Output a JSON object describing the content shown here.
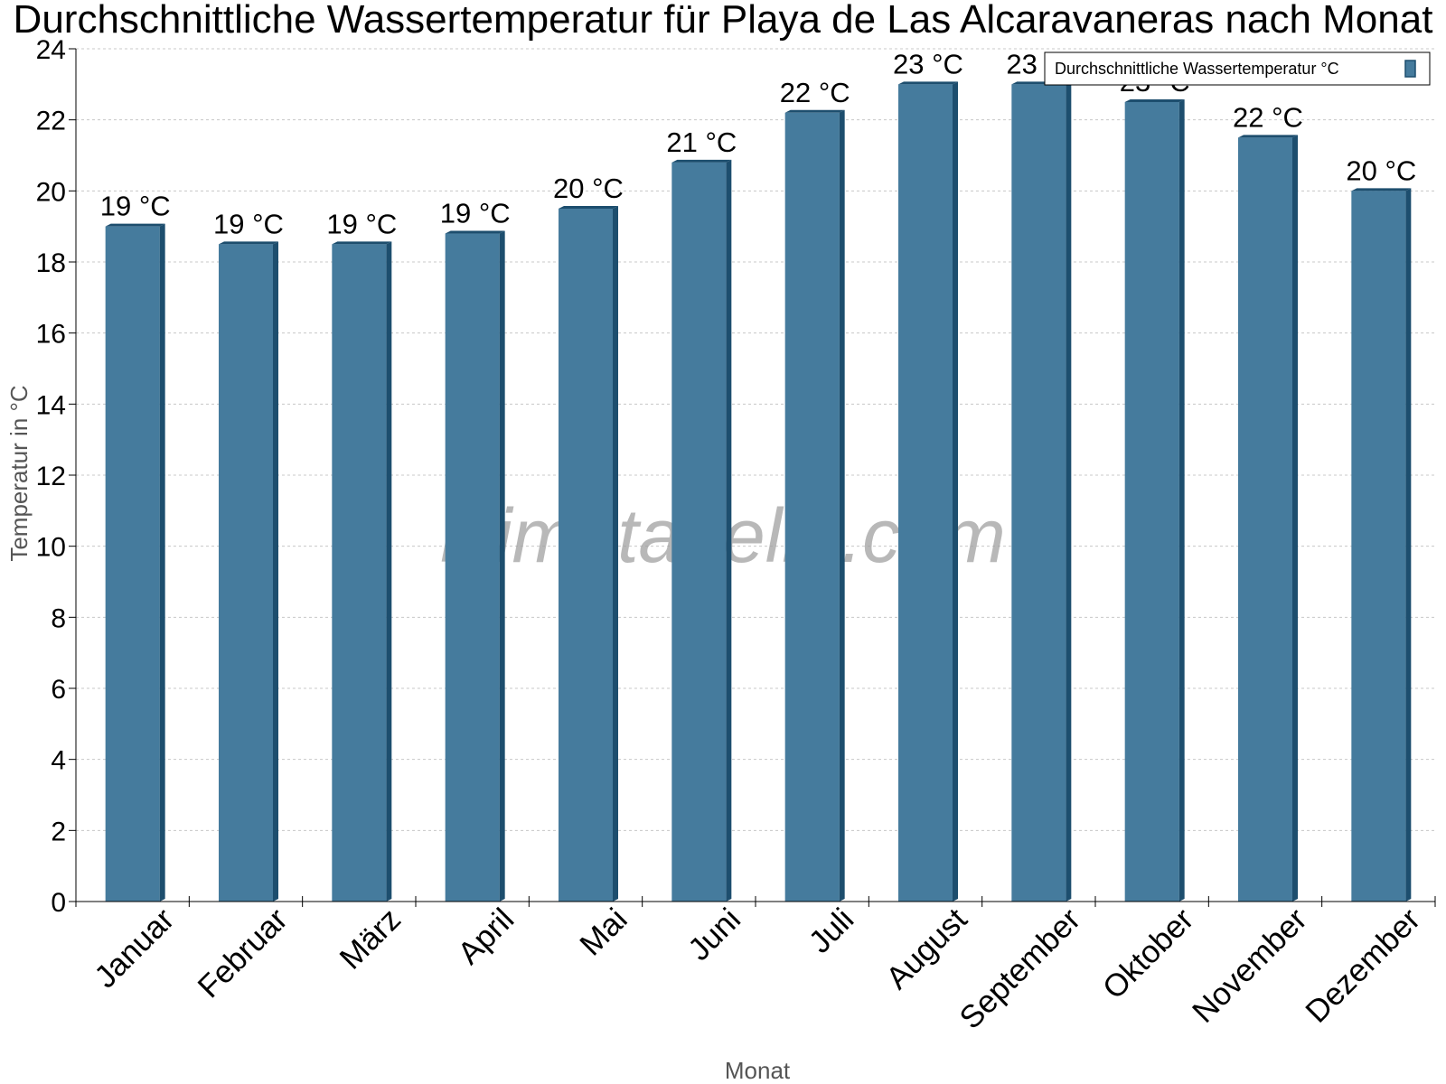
{
  "chart_data": {
    "type": "bar",
    "title": "Durchschnittliche Wassertemperatur für Playa de Las Alcaravaneras nach Monat",
    "xlabel": "Monat",
    "ylabel": "Temperatur in °C",
    "ylim": [
      0,
      24
    ],
    "yticks": [
      "0",
      "2",
      "4",
      "6",
      "8",
      "10",
      "12",
      "14",
      "16",
      "18",
      "20",
      "22",
      "24"
    ],
    "grid": true,
    "legend_position": "top-right",
    "categories": [
      "Januar",
      "Februar",
      "März",
      "April",
      "Mai",
      "Juni",
      "Juli",
      "August",
      "September",
      "Oktober",
      "November",
      "Dezember"
    ],
    "series": [
      {
        "name": "Durchschnittliche Wassertemperatur °C",
        "values": [
          19.0,
          18.5,
          18.5,
          18.8,
          19.5,
          20.8,
          22.2,
          23.0,
          23.0,
          22.5,
          21.5,
          20.0
        ],
        "labels": [
          "19 °C",
          "19 °C",
          "19 °C",
          "19 °C",
          "20 °C",
          "21 °C",
          "22 °C",
          "23 °C",
          "23 °C",
          "23 °C",
          "22 °C",
          "20 °C"
        ]
      }
    ],
    "colors": {
      "bar_face": "#457b9d",
      "bar_side": "#1d4e6e"
    },
    "watermark": "klimatabelle.com"
  }
}
